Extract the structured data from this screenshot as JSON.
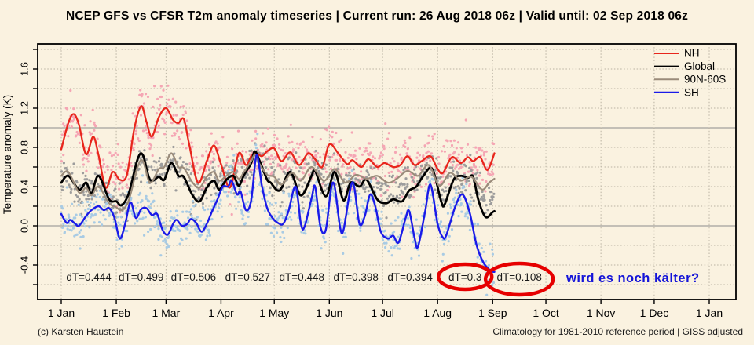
{
  "header": {
    "title": "NCEP GFS vs CFSR T2m anomaly timeseries | Current run: 26 Aug 2018 06z | Valid until: 02 Sep 2018 06z"
  },
  "footer": {
    "left": "(c) Karsten Haustein",
    "right": "Climatology for 1981-2010 reference period | GISS adjusted"
  },
  "annotation": {
    "text": "wird es noch kälter?",
    "color": "#1414d8"
  },
  "colors": {
    "background": "#faf2e0",
    "frame": "#000000",
    "grid_dotted": "#b9b2a2",
    "grid_solid": "#8c8c8c",
    "tick_text": "#000000",
    "dt_text": "#1a1a1a",
    "circle": "#e60000"
  },
  "chart_data": {
    "type": "line",
    "title": "NCEP GFS vs CFSR T2m anomaly timeseries",
    "xlabel": "",
    "ylabel": "Temperature anomaly (K)",
    "ylim": [
      -0.75,
      1.85
    ],
    "grid": true,
    "solid_gridlines_at": [
      0.0,
      1.0
    ],
    "y_minor_step": 0.2,
    "y_ticks": [
      {
        "label": "-0.4",
        "v": -0.4
      },
      {
        "label": "0.0",
        "v": 0.0
      },
      {
        "label": "0.4",
        "v": 0.4
      },
      {
        "label": "0.8",
        "v": 0.8
      },
      {
        "label": "1.2",
        "v": 1.2
      },
      {
        "label": "1.6",
        "v": 1.6
      }
    ],
    "x_ticks": [
      {
        "label": "1 Jan",
        "day": 0
      },
      {
        "label": "1 Feb",
        "day": 31
      },
      {
        "label": "1 Mar",
        "day": 59
      },
      {
        "label": "1 Apr",
        "day": 90
      },
      {
        "label": "1 May",
        "day": 120
      },
      {
        "label": "1 Jun",
        "day": 151
      },
      {
        "label": "1 Jul",
        "day": 181
      },
      {
        "label": "1 Aug",
        "day": 212
      },
      {
        "label": "1 Sep",
        "day": 243
      },
      {
        "label": "1 Oct",
        "day": 273
      },
      {
        "label": "1 Nov",
        "day": 304
      },
      {
        "label": "1 Dec",
        "day": 334
      },
      {
        "label": "1 Jan",
        "day": 365
      }
    ],
    "legend": {
      "position": "top-right",
      "entries": [
        {
          "label": "NH",
          "color": "#e8261c"
        },
        {
          "label": "Global",
          "color": "#000000"
        },
        {
          "label": "90N-60S",
          "color": "#9a8b7a"
        },
        {
          "label": "SH",
          "color": "#1a1ae8"
        }
      ]
    },
    "series": [
      {
        "name": "NH",
        "color": "#e8261c",
        "width": 2.3,
        "points": [
          [
            0,
            0.78
          ],
          [
            4,
            1.05
          ],
          [
            7,
            1.14
          ],
          [
            10,
            1.03
          ],
          [
            14,
            0.73
          ],
          [
            18,
            0.91
          ],
          [
            21,
            0.72
          ],
          [
            25,
            0.39
          ],
          [
            29,
            0.55
          ],
          [
            33,
            0.47
          ],
          [
            37,
            0.52
          ],
          [
            41,
            0.98
          ],
          [
            45,
            1.22
          ],
          [
            48,
            1.06
          ],
          [
            51,
            0.91
          ],
          [
            55,
            1.11
          ],
          [
            59,
            1.2
          ],
          [
            63,
            1.08
          ],
          [
            66,
            1.05
          ],
          [
            69,
            1.09
          ],
          [
            72,
            0.84
          ],
          [
            77,
            0.44
          ],
          [
            82,
            0.66
          ],
          [
            86,
            0.82
          ],
          [
            90,
            0.63
          ],
          [
            95,
            0.39
          ],
          [
            100,
            0.74
          ],
          [
            104,
            0.62
          ],
          [
            107,
            0.71
          ],
          [
            110,
            0.74
          ],
          [
            113,
            0.71
          ],
          [
            116,
            0.76
          ],
          [
            120,
            0.79
          ],
          [
            124,
            0.66
          ],
          [
            129,
            0.75
          ],
          [
            134,
            0.62
          ],
          [
            139,
            0.74
          ],
          [
            143,
            0.68
          ],
          [
            147,
            0.6
          ],
          [
            151,
            0.83
          ],
          [
            156,
            0.74
          ],
          [
            161,
            0.63
          ],
          [
            164,
            0.67
          ],
          [
            169,
            0.6
          ],
          [
            173,
            0.68
          ],
          [
            178,
            0.6
          ],
          [
            182,
            0.64
          ],
          [
            187,
            0.6
          ],
          [
            191,
            0.62
          ],
          [
            195,
            0.71
          ],
          [
            199,
            0.62
          ],
          [
            203,
            0.66
          ],
          [
            208,
            0.71
          ],
          [
            212,
            0.58
          ],
          [
            215,
            0.54
          ],
          [
            220,
            0.7
          ],
          [
            225,
            0.64
          ],
          [
            229,
            0.7
          ],
          [
            232,
            0.66
          ],
          [
            236,
            0.7
          ],
          [
            240,
            0.57
          ],
          [
            244,
            0.74
          ]
        ]
      },
      {
        "name": "Global",
        "color": "#000000",
        "width": 2.8,
        "points": [
          [
            0,
            0.44
          ],
          [
            4,
            0.51
          ],
          [
            10,
            0.37
          ],
          [
            14,
            0.44
          ],
          [
            17,
            0.33
          ],
          [
            21,
            0.51
          ],
          [
            27,
            0.27
          ],
          [
            31,
            0.25
          ],
          [
            34,
            0.21
          ],
          [
            38,
            0.33
          ],
          [
            43,
            0.68
          ],
          [
            46,
            0.72
          ],
          [
            50,
            0.47
          ],
          [
            55,
            0.5
          ],
          [
            58,
            0.47
          ],
          [
            62,
            0.64
          ],
          [
            66,
            0.51
          ],
          [
            69,
            0.5
          ],
          [
            74,
            0.31
          ],
          [
            78,
            0.25
          ],
          [
            82,
            0.39
          ],
          [
            86,
            0.46
          ],
          [
            89,
            0.37
          ],
          [
            93,
            0.47
          ],
          [
            97,
            0.51
          ],
          [
            100,
            0.41
          ],
          [
            103,
            0.52
          ],
          [
            107,
            0.64
          ],
          [
            109,
            0.76
          ],
          [
            112,
            0.65
          ],
          [
            116,
            0.47
          ],
          [
            118,
            0.44
          ],
          [
            123,
            0.36
          ],
          [
            129,
            0.55
          ],
          [
            135,
            0.31
          ],
          [
            141,
            0.51
          ],
          [
            143,
            0.56
          ],
          [
            149,
            0.3
          ],
          [
            154,
            0.55
          ],
          [
            159,
            0.26
          ],
          [
            163,
            0.44
          ],
          [
            168,
            0.4
          ],
          [
            172,
            0.47
          ],
          [
            178,
            0.27
          ],
          [
            183,
            0.23
          ],
          [
            187,
            0.27
          ],
          [
            192,
            0.25
          ],
          [
            196,
            0.36
          ],
          [
            200,
            0.4
          ],
          [
            204,
            0.51
          ],
          [
            209,
            0.58
          ],
          [
            214,
            0.25
          ],
          [
            216,
            0.22
          ],
          [
            221,
            0.47
          ],
          [
            225,
            0.51
          ],
          [
            229,
            0.49
          ],
          [
            232,
            0.5
          ],
          [
            235,
            0.26
          ],
          [
            239,
            0.09
          ],
          [
            243,
            0.14
          ],
          [
            244,
            0.15
          ]
        ]
      },
      {
        "name": "90N-60S",
        "color": "#9a8b7a",
        "width": 2.2,
        "points": [
          [
            0,
            0.51
          ],
          [
            4,
            0.55
          ],
          [
            10,
            0.34
          ],
          [
            14,
            0.39
          ],
          [
            17,
            0.31
          ],
          [
            21,
            0.4
          ],
          [
            27,
            0.23
          ],
          [
            31,
            0.19
          ],
          [
            34,
            0.16
          ],
          [
            38,
            0.26
          ],
          [
            43,
            0.6
          ],
          [
            46,
            0.66
          ],
          [
            50,
            0.44
          ],
          [
            55,
            0.58
          ],
          [
            58,
            0.6
          ],
          [
            62,
            0.74
          ],
          [
            66,
            0.6
          ],
          [
            69,
            0.59
          ],
          [
            74,
            0.44
          ],
          [
            78,
            0.39
          ],
          [
            82,
            0.5
          ],
          [
            86,
            0.55
          ],
          [
            89,
            0.46
          ],
          [
            93,
            0.51
          ],
          [
            97,
            0.55
          ],
          [
            100,
            0.48
          ],
          [
            103,
            0.55
          ],
          [
            107,
            0.66
          ],
          [
            109,
            0.72
          ],
          [
            112,
            0.62
          ],
          [
            116,
            0.52
          ],
          [
            120,
            0.5
          ],
          [
            124,
            0.42
          ],
          [
            130,
            0.54
          ],
          [
            135,
            0.46
          ],
          [
            141,
            0.6
          ],
          [
            148,
            0.46
          ],
          [
            154,
            0.58
          ],
          [
            160,
            0.44
          ],
          [
            166,
            0.52
          ],
          [
            172,
            0.48
          ],
          [
            178,
            0.51
          ],
          [
            184,
            0.44
          ],
          [
            189,
            0.48
          ],
          [
            195,
            0.56
          ],
          [
            201,
            0.51
          ],
          [
            207,
            0.62
          ],
          [
            213,
            0.41
          ],
          [
            219,
            0.54
          ],
          [
            225,
            0.46
          ],
          [
            231,
            0.5
          ],
          [
            237,
            0.37
          ],
          [
            241,
            0.44
          ],
          [
            244,
            0.48
          ]
        ]
      },
      {
        "name": "SH",
        "color": "#1a1ae8",
        "width": 2.4,
        "points": [
          [
            0,
            0.12
          ],
          [
            3,
            0.03
          ],
          [
            5,
            0.06
          ],
          [
            8,
            0.02
          ],
          [
            10,
            0.0
          ],
          [
            14,
            0.1
          ],
          [
            17,
            0.16
          ],
          [
            21,
            0.2
          ],
          [
            24,
            0.16
          ],
          [
            27,
            0.18
          ],
          [
            30,
            0.08
          ],
          [
            33,
            -0.13
          ],
          [
            36,
            0.02
          ],
          [
            39,
            0.24
          ],
          [
            42,
            0.08
          ],
          [
            45,
            0.17
          ],
          [
            48,
            0.18
          ],
          [
            51,
            0.11
          ],
          [
            54,
            0.12
          ],
          [
            57,
            -0.04
          ],
          [
            60,
            -0.09
          ],
          [
            63,
            0.02
          ],
          [
            65,
            0.06
          ],
          [
            68,
            0.0
          ],
          [
            71,
            0.02
          ],
          [
            73,
            0.07
          ],
          [
            76,
            0.03
          ],
          [
            79,
            -0.06
          ],
          [
            82,
            0.02
          ],
          [
            85,
            0.15
          ],
          [
            88,
            0.27
          ],
          [
            91,
            0.4
          ],
          [
            94,
            0.4
          ],
          [
            96,
            0.46
          ],
          [
            99,
            0.32
          ],
          [
            101,
            0.35
          ],
          [
            104,
            0.16
          ],
          [
            107,
            0.26
          ],
          [
            110,
            0.72
          ],
          [
            113,
            0.41
          ],
          [
            116,
            0.18
          ],
          [
            119,
            0.08
          ],
          [
            122,
            0.03
          ],
          [
            125,
            0.02
          ],
          [
            128,
            0.15
          ],
          [
            132,
            0.4
          ],
          [
            135,
            0.02
          ],
          [
            137,
            -0.01
          ],
          [
            141,
            0.28
          ],
          [
            143,
            0.4
          ],
          [
            146,
            -0.01
          ],
          [
            149,
            -0.04
          ],
          [
            152,
            0.38
          ],
          [
            154,
            0.4
          ],
          [
            157,
            -0.01
          ],
          [
            159,
            -0.04
          ],
          [
            163,
            0.39
          ],
          [
            165,
            0.4
          ],
          [
            168,
            0.02
          ],
          [
            171,
            0.1
          ],
          [
            174,
            0.32
          ],
          [
            177,
            0.19
          ],
          [
            180,
            -0.06
          ],
          [
            184,
            -0.13
          ],
          [
            187,
            -0.1
          ],
          [
            190,
            -0.17
          ],
          [
            194,
            0.08
          ],
          [
            196,
            0.15
          ],
          [
            199,
            -0.12
          ],
          [
            201,
            -0.21
          ],
          [
            205,
            0.15
          ],
          [
            208,
            0.42
          ],
          [
            212,
            0.02
          ],
          [
            215,
            -0.12
          ],
          [
            217,
            -0.09
          ],
          [
            222,
            0.2
          ],
          [
            226,
            0.32
          ],
          [
            230,
            0.14
          ],
          [
            234,
            -0.2
          ],
          [
            238,
            -0.38
          ],
          [
            242,
            -0.46
          ],
          [
            244,
            -0.47
          ]
        ]
      }
    ],
    "scatter": {
      "description": "6-hourly raw values scattered around the smoothed curves",
      "points_per_day": 3,
      "day_range": [
        0,
        244
      ],
      "dot_radius": 1.6,
      "series": [
        {
          "name": "NH 6-hourly",
          "color": "#f5a6b4",
          "around": "NH",
          "std": 0.14
        },
        {
          "name": "Global 6-hourly",
          "color": "#9c9c9c",
          "around": "mid",
          "std": 0.1
        },
        {
          "name": "SH 6-hourly",
          "color": "#a8cbe4",
          "around": "SH",
          "std": 0.11
        }
      ]
    },
    "dT_labels": [
      {
        "text": "dT=0.444",
        "center_day": 15.5,
        "circled": false
      },
      {
        "text": "dT=0.499",
        "center_day": 45.0,
        "circled": false
      },
      {
        "text": "dT=0.506",
        "center_day": 74.5,
        "circled": false
      },
      {
        "text": "dT=0.527",
        "center_day": 105.0,
        "circled": false
      },
      {
        "text": "dT=0.448",
        "center_day": 135.5,
        "circled": false
      },
      {
        "text": "dT=0.398",
        "center_day": 166.0,
        "circled": false
      },
      {
        "text": "dT=0.394",
        "center_day": 196.5,
        "circled": false
      },
      {
        "text": "dT=0.3",
        "center_day": 227.5,
        "circled": true
      },
      {
        "text": "dT=0.108",
        "center_day": 258.0,
        "circled": true
      }
    ],
    "annotation_center_day": 322
  }
}
